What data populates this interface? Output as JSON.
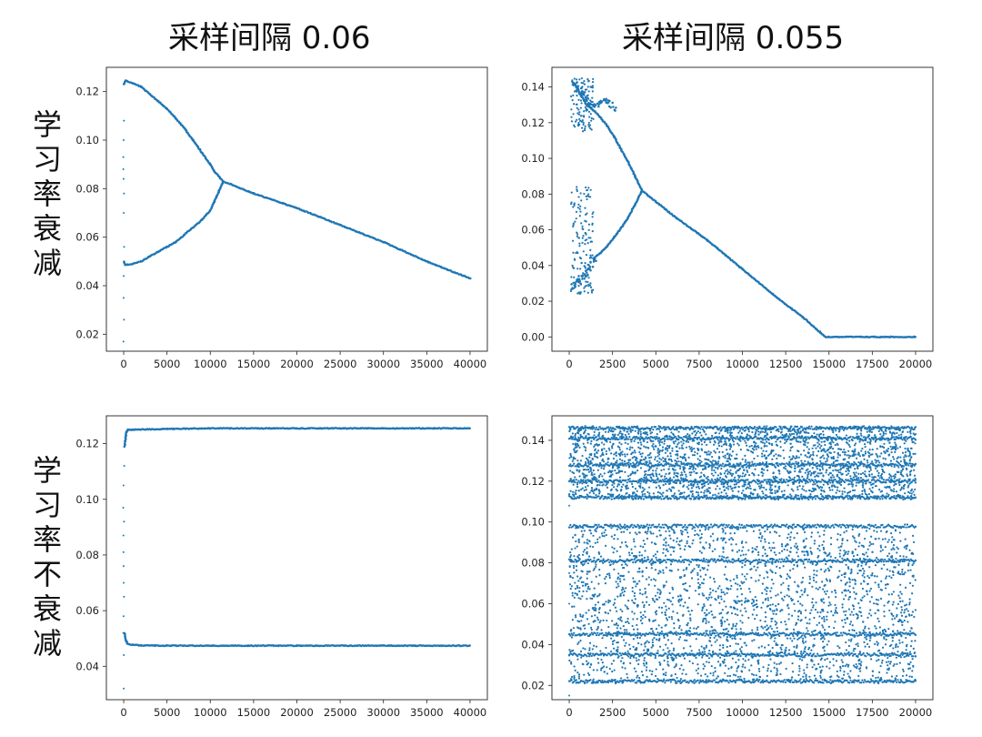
{
  "column_titles": [
    "采样间隔 0.06",
    "采样间隔 0.055"
  ],
  "row_labels": [
    [
      "学",
      "习",
      "率",
      "衰",
      "减"
    ],
    [
      "学",
      "习",
      "率",
      "不",
      "衰",
      "减"
    ]
  ],
  "colors": {
    "series": "#1f77b4"
  },
  "chart_data": [
    {
      "type": "scatter",
      "id": "top-left",
      "title": "",
      "xlabel": "",
      "ylabel": "",
      "xlim": [
        -2000,
        42000
      ],
      "ylim": [
        0.013,
        0.13
      ],
      "xticks": [
        0,
        5000,
        10000,
        15000,
        20000,
        25000,
        30000,
        35000,
        40000
      ],
      "xtick_labels": [
        "0",
        "5000",
        "10000",
        "15000",
        "20000",
        "25000",
        "30000",
        "35000",
        "40000"
      ],
      "yticks": [
        0.02,
        0.04,
        0.06,
        0.08,
        0.1,
        0.12
      ],
      "ytick_labels": [
        "0.02",
        "0.04",
        "0.06",
        "0.08",
        "0.10",
        "0.12"
      ],
      "grid": false,
      "series": [
        {
          "x": [
            0,
            200,
            1000,
            2000,
            3000,
            4000,
            5000,
            6000,
            7000,
            8000,
            9000,
            10000,
            10500,
            11000,
            11500
          ],
          "y": [
            0.123,
            0.1245,
            0.1235,
            0.122,
            0.119,
            0.116,
            0.113,
            0.109,
            0.105,
            0.1,
            0.095,
            0.09,
            0.087,
            0.085,
            0.083
          ]
        },
        {
          "x": [
            0,
            200,
            1000,
            2000,
            3000,
            4000,
            5000,
            6000,
            7000,
            8000,
            9000,
            10000,
            10500,
            11000,
            11500
          ],
          "y": [
            0.05,
            0.0485,
            0.049,
            0.05,
            0.052,
            0.054,
            0.056,
            0.058,
            0.061,
            0.064,
            0.067,
            0.071,
            0.075,
            0.079,
            0.083
          ]
        },
        {
          "x": [
            11500,
            15000,
            20000,
            25000,
            30000,
            35000,
            40000
          ],
          "y": [
            0.083,
            0.078,
            0.072,
            0.065,
            0.058,
            0.05,
            0.043
          ]
        },
        {
          "x": [
            0,
            0,
            0,
            0,
            0,
            0,
            0,
            0,
            0,
            0,
            0,
            0
          ],
          "y": [
            0.017,
            0.026,
            0.035,
            0.044,
            0.056,
            0.07,
            0.078,
            0.084,
            0.088,
            0.093,
            0.1,
            0.108
          ]
        }
      ]
    },
    {
      "type": "scatter",
      "id": "top-right",
      "title": "",
      "xlabel": "",
      "ylabel": "",
      "xlim": [
        -1000,
        21000
      ],
      "ylim": [
        -0.008,
        0.151
      ],
      "xticks": [
        0,
        2500,
        5000,
        7500,
        10000,
        12500,
        15000,
        17500,
        20000
      ],
      "xtick_labels": [
        "0",
        "2500",
        "5000",
        "7500",
        "10000",
        "12500",
        "15000",
        "17500",
        "20000"
      ],
      "yticks": [
        0.0,
        0.02,
        0.04,
        0.06,
        0.08,
        0.1,
        0.12,
        0.14
      ],
      "ytick_labels": [
        "0.00",
        "0.02",
        "0.04",
        "0.06",
        "0.08",
        "0.10",
        "0.12",
        "0.14"
      ],
      "grid": false,
      "series": [
        {
          "x": [
            300,
            700,
            1000,
            1400,
            1800,
            2200,
            2600,
            3000,
            3400,
            3800,
            4200
          ],
          "y": [
            0.142,
            0.135,
            0.13,
            0.127,
            0.123,
            0.118,
            0.112,
            0.105,
            0.098,
            0.09,
            0.082
          ]
        },
        {
          "x": [
            1400,
            1800,
            2200,
            2600,
            3000,
            3400,
            3800,
            4200
          ],
          "y": [
            0.044,
            0.047,
            0.051,
            0.056,
            0.061,
            0.067,
            0.074,
            0.082
          ]
        },
        {
          "x": [
            4200,
            6000,
            8000,
            10000,
            12000,
            13500,
            14800,
            16000,
            18000,
            20000
          ],
          "y": [
            0.082,
            0.068,
            0.054,
            0.038,
            0.022,
            0.011,
            0.0,
            0.0,
            0.0,
            0.0
          ]
        },
        {
          "x": [
            200,
            500,
            800,
            1100,
            1400,
            1700,
            2000,
            2300,
            2600
          ],
          "y": [
            0.143,
            0.14,
            0.136,
            0.132,
            0.129,
            0.131,
            0.133,
            0.131,
            0.127
          ]
        },
        {
          "x": [
            200,
            400,
            600,
            800,
            1000,
            1200,
            1400
          ],
          "y": [
            0.027,
            0.03,
            0.032,
            0.034,
            0.036,
            0.039,
            0.044
          ]
        }
      ]
    },
    {
      "type": "scatter",
      "id": "bottom-left",
      "title": "",
      "xlabel": "",
      "ylabel": "",
      "xlim": [
        -2000,
        42000
      ],
      "ylim": [
        0.028,
        0.13
      ],
      "xticks": [
        0,
        5000,
        10000,
        15000,
        20000,
        25000,
        30000,
        35000,
        40000
      ],
      "xtick_labels": [
        "0",
        "5000",
        "10000",
        "15000",
        "20000",
        "25000",
        "30000",
        "35000",
        "40000"
      ],
      "yticks": [
        0.04,
        0.06,
        0.08,
        0.1,
        0.12
      ],
      "ytick_labels": [
        "0.04",
        "0.06",
        "0.08",
        "0.10",
        "0.12"
      ],
      "grid": false,
      "series": [
        {
          "x": [
            100,
            300,
            500,
            1000,
            5000,
            10000,
            20000,
            30000,
            40000
          ],
          "y": [
            0.119,
            0.124,
            0.125,
            0.125,
            0.1253,
            0.1255,
            0.1255,
            0.1255,
            0.1255
          ]
        },
        {
          "x": [
            100,
            300,
            500,
            1000,
            2000,
            5000,
            10000,
            20000,
            30000,
            40000
          ],
          "y": [
            0.052,
            0.049,
            0.048,
            0.0477,
            0.0475,
            0.0474,
            0.0474,
            0.0474,
            0.0474,
            0.0474
          ]
        },
        {
          "x": [
            0,
            0,
            0,
            0,
            0,
            0,
            0,
            0,
            0,
            0,
            0,
            0,
            0
          ],
          "y": [
            0.032,
            0.044,
            0.052,
            0.058,
            0.065,
            0.07,
            0.076,
            0.081,
            0.087,
            0.092,
            0.097,
            0.105,
            0.112
          ]
        }
      ]
    },
    {
      "type": "scatter",
      "id": "bottom-right",
      "title": "",
      "xlabel": "",
      "ylabel": "",
      "xlim": [
        -1000,
        21000
      ],
      "ylim": [
        0.013,
        0.152
      ],
      "xticks": [
        0,
        2500,
        5000,
        7500,
        10000,
        12500,
        15000,
        17500,
        20000
      ],
      "xtick_labels": [
        "0",
        "2500",
        "5000",
        "7500",
        "10000",
        "12500",
        "15000",
        "17500",
        "20000"
      ],
      "yticks": [
        0.02,
        0.04,
        0.06,
        0.08,
        0.1,
        0.12,
        0.14
      ],
      "ytick_labels": [
        "0.02",
        "0.04",
        "0.06",
        "0.08",
        "0.10",
        "0.12",
        "0.14"
      ],
      "grid": false,
      "bands": [
        {
          "x_range": [
            0,
            20000
          ],
          "y_range": [
            0.111,
            0.147
          ]
        },
        {
          "x_range": [
            0,
            20000
          ],
          "y_range": [
            0.021,
            0.098
          ]
        }
      ],
      "dense_lines_y": [
        0.146,
        0.141,
        0.128,
        0.12,
        0.112,
        0.098,
        0.081,
        0.045,
        0.035,
        0.022
      ]
    }
  ]
}
